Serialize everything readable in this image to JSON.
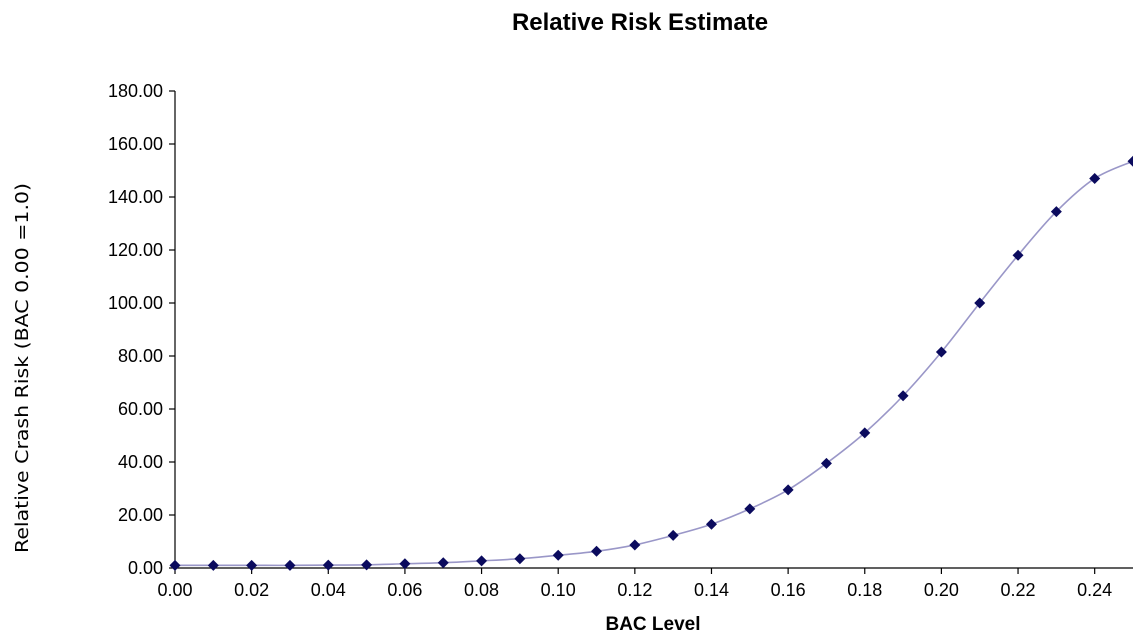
{
  "chart_data": {
    "type": "line",
    "title": "Relative Risk Estimate",
    "xlabel": "BAC Level",
    "ylabel": "Relative Crash Risk (BAC 0.00 =1.0)",
    "xlim": [
      0.0,
      0.25
    ],
    "ylim": [
      0,
      180
    ],
    "x_ticks": [
      "0.00",
      "0.02",
      "0.04",
      "0.06",
      "0.08",
      "0.10",
      "0.12",
      "0.14",
      "0.16",
      "0.18",
      "0.20",
      "0.22",
      "0.24"
    ],
    "y_ticks": [
      "0.00",
      "20.00",
      "40.00",
      "60.00",
      "80.00",
      "100.00",
      "120.00",
      "140.00",
      "160.00",
      "180.00"
    ],
    "grid": false,
    "legend": "none",
    "marker": "diamond",
    "colors": {
      "marker": "#0b0b5e",
      "line": "#9a97c8"
    },
    "series": [
      {
        "x": [
          0.0,
          0.01,
          0.02,
          0.03,
          0.04,
          0.05,
          0.06,
          0.07,
          0.08,
          0.09,
          0.1,
          0.11,
          0.12,
          0.13,
          0.14,
          0.15,
          0.16,
          0.17,
          0.18,
          0.19,
          0.2,
          0.21,
          0.22,
          0.23,
          0.24,
          0.25
        ],
        "values": [
          1.0,
          1.0,
          1.0,
          1.0,
          1.1,
          1.2,
          1.6,
          2.0,
          2.7,
          3.5,
          4.8,
          6.3,
          8.7,
          12.3,
          16.5,
          22.3,
          29.5,
          39.5,
          51.0,
          65.0,
          81.5,
          100.0,
          118.0,
          134.5,
          147.0,
          153.5
        ]
      }
    ]
  }
}
